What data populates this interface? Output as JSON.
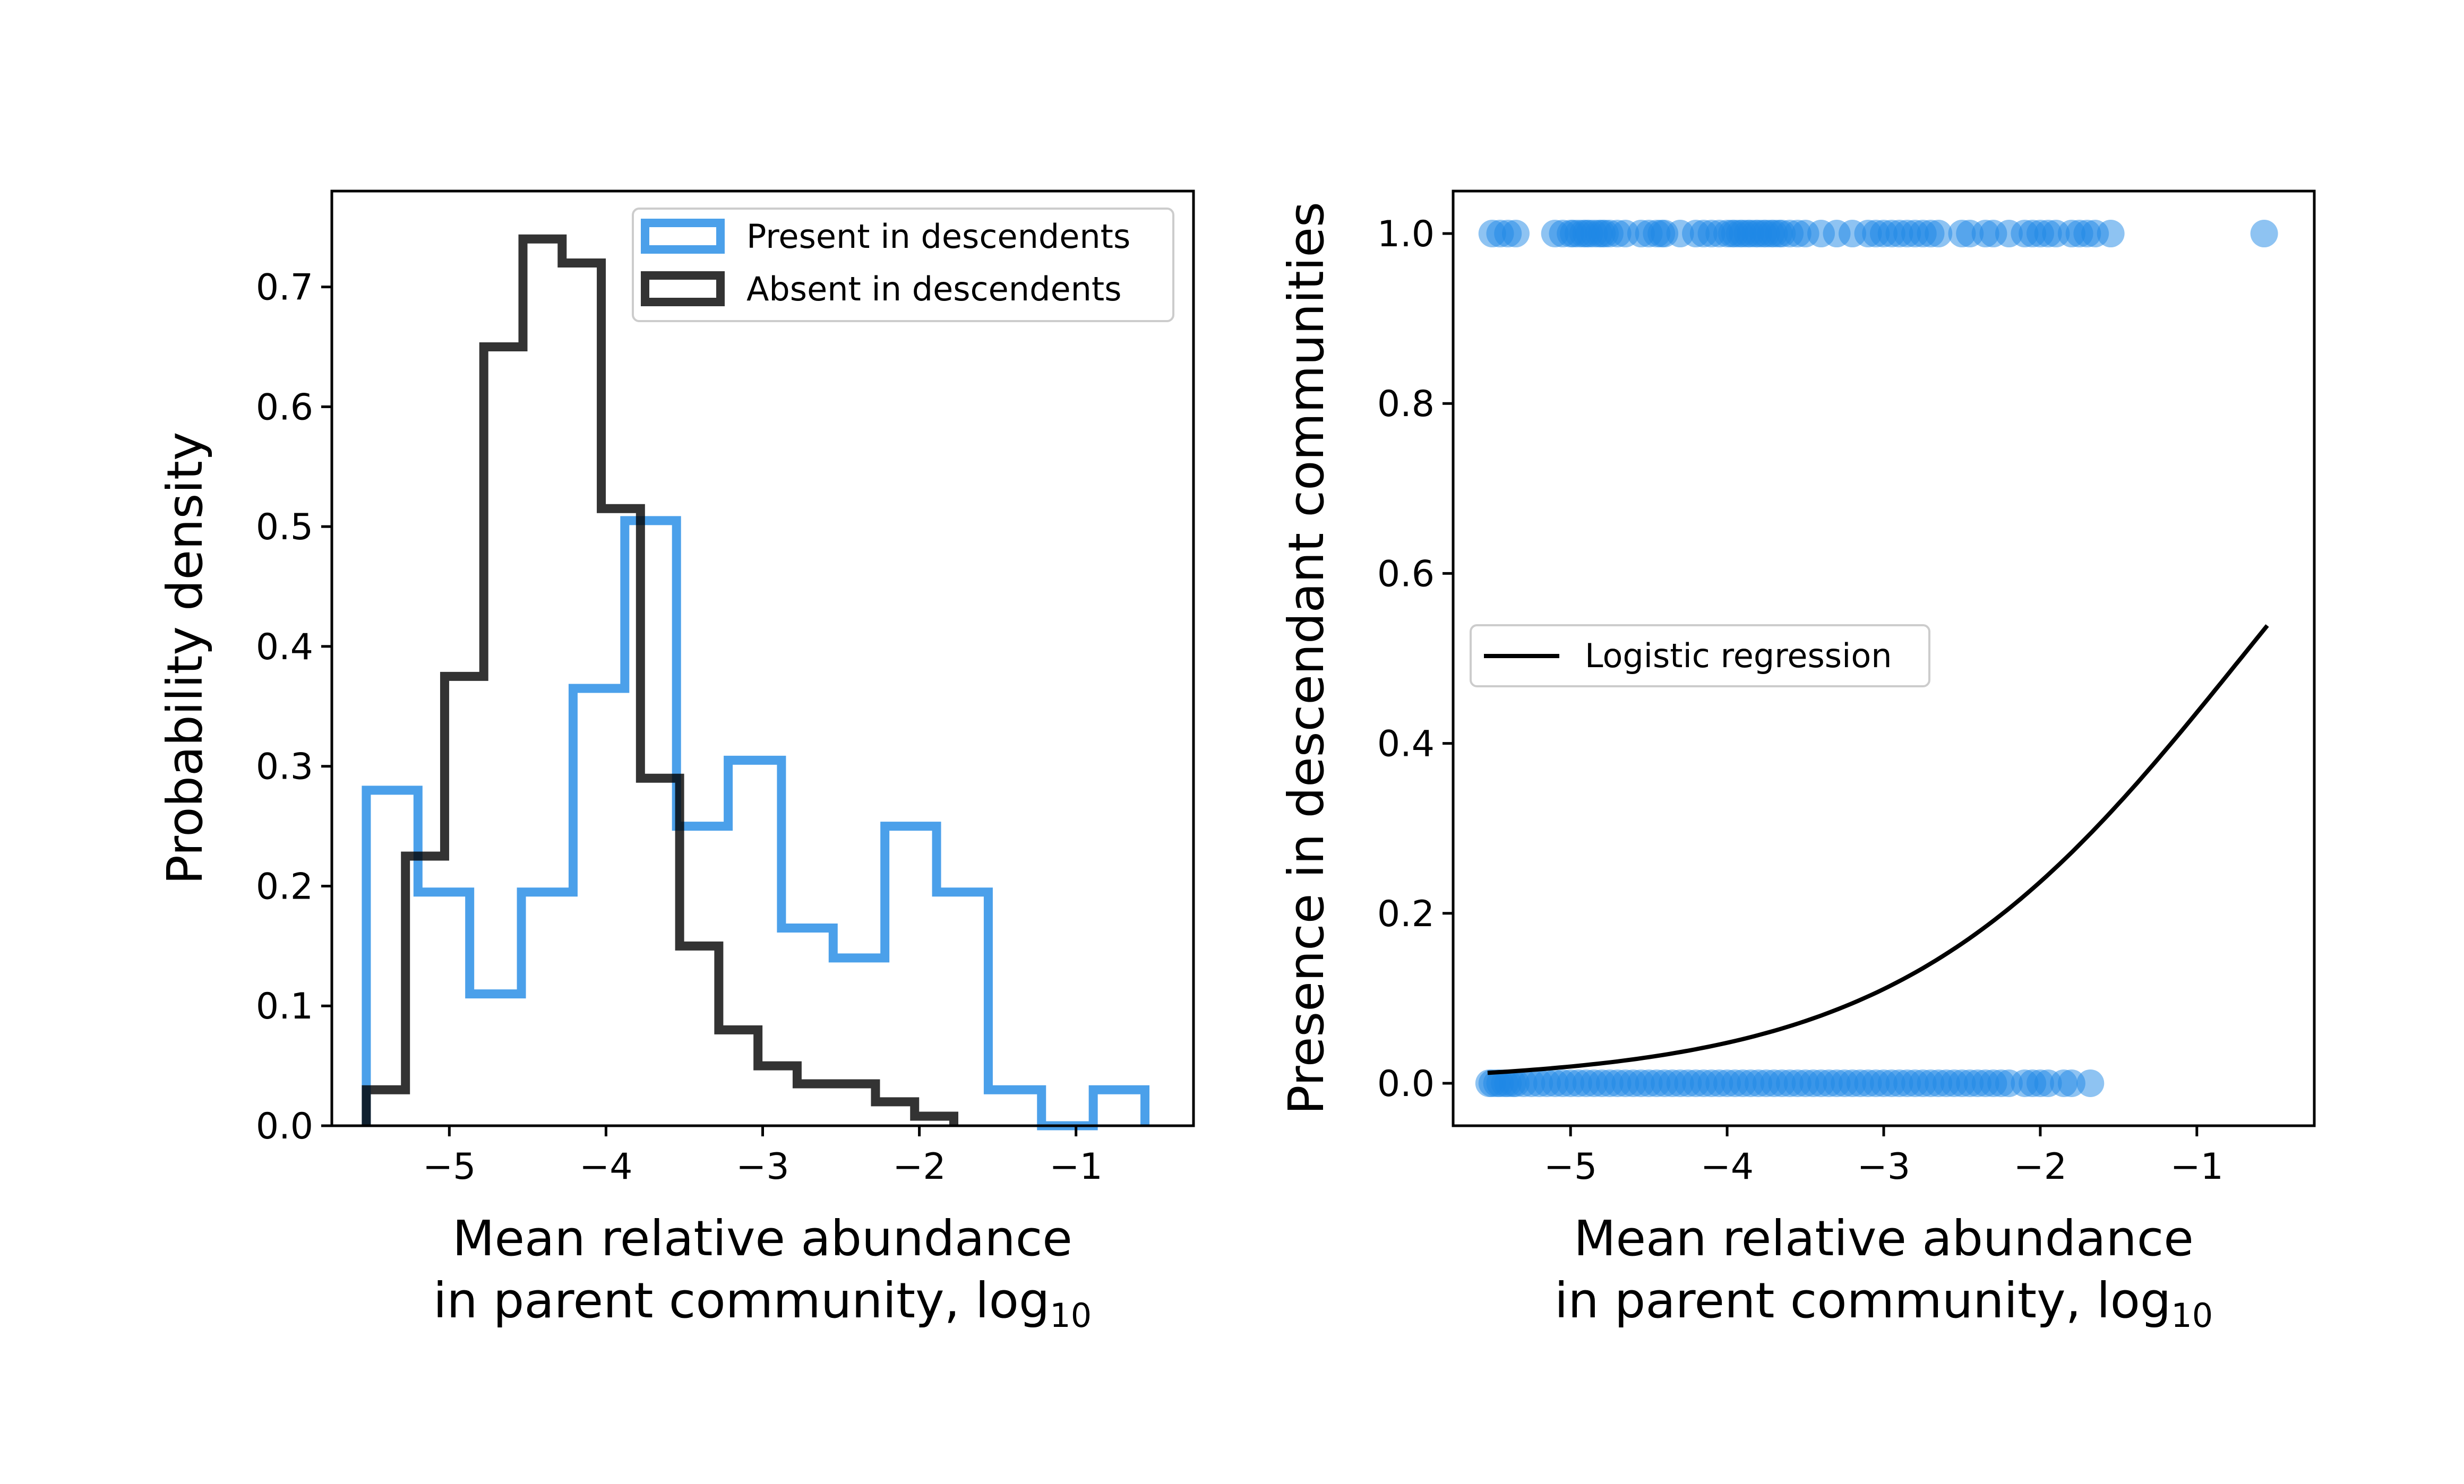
{
  "chart_data": [
    {
      "type": "histogram",
      "xlabel": "Mean relative abundance",
      "xlabel_line2_prefix": "in parent community, log",
      "xlabel_line2_subscript": "10",
      "ylabel": "Probability density",
      "xlim": [
        -5.75,
        -0.25
      ],
      "ylim": [
        0,
        0.78
      ],
      "xticks": [
        -5,
        -4,
        -3,
        -2,
        -1
      ],
      "xtick_labels": [
        "−5",
        "−4",
        "−3",
        "−2",
        "−1"
      ],
      "yticks": [
        0.0,
        0.1,
        0.2,
        0.3,
        0.4,
        0.5,
        0.6,
        0.7
      ],
      "ytick_labels": [
        "0.0",
        "0.1",
        "0.2",
        "0.3",
        "0.4",
        "0.5",
        "0.6",
        "0.7"
      ],
      "legend_position": "top-right",
      "series": [
        {
          "name": "Present in descendents",
          "color": "#1e88e5",
          "opacity": 0.8,
          "bin_edges": [
            -5.53,
            -5.2,
            -4.87,
            -4.54,
            -4.21,
            -3.88,
            -3.55,
            -3.22,
            -2.88,
            -2.55,
            -2.22,
            -1.89,
            -1.56,
            -1.22,
            -0.89,
            -0.56
          ],
          "values": [
            0.28,
            0.195,
            0.11,
            0.195,
            0.365,
            0.505,
            0.25,
            0.305,
            0.165,
            0.14,
            0.25,
            0.195,
            0.03,
            0.0,
            0.03
          ]
        },
        {
          "name": "Absent in descendents",
          "color": "#000000",
          "opacity": 0.8,
          "bin_edges": [
            -5.53,
            -5.28,
            -5.03,
            -4.78,
            -4.53,
            -4.28,
            -4.03,
            -3.78,
            -3.53,
            -3.28,
            -3.03,
            -2.78,
            -2.53,
            -2.28,
            -2.03,
            -1.78
          ],
          "values": [
            0.03,
            0.225,
            0.375,
            0.65,
            0.74,
            0.72,
            0.515,
            0.29,
            0.15,
            0.08,
            0.05,
            0.035,
            0.035,
            0.02,
            0.008
          ]
        }
      ]
    },
    {
      "type": "scatter",
      "xlabel": "Mean relative abundance",
      "xlabel_line2_prefix": "in parent community, log",
      "xlabel_line2_subscript": "10",
      "ylabel": "Presence in descendant communities",
      "xlim": [
        -5.75,
        -0.25
      ],
      "ylim": [
        -0.05,
        1.05
      ],
      "xticks": [
        -5,
        -4,
        -3,
        -2,
        -1
      ],
      "xtick_labels": [
        "−5",
        "−4",
        "−3",
        "−2",
        "−1"
      ],
      "yticks": [
        0.0,
        0.2,
        0.4,
        0.6,
        0.8,
        1.0
      ],
      "ytick_labels": [
        "0.0",
        "0.2",
        "0.4",
        "0.6",
        "0.8",
        "1.0"
      ],
      "legend_position": "center-left",
      "points_color": "#1e88e5",
      "points_opacity": 0.5,
      "present_x": [
        -5.5,
        -5.45,
        -5.4,
        -5.35,
        -5.1,
        -5.05,
        -5.0,
        -4.98,
        -4.95,
        -4.92,
        -4.9,
        -4.88,
        -4.85,
        -4.82,
        -4.8,
        -4.78,
        -4.75,
        -4.7,
        -4.65,
        -4.55,
        -4.5,
        -4.45,
        -4.42,
        -4.4,
        -4.3,
        -4.2,
        -4.15,
        -4.1,
        -4.05,
        -4.0,
        -3.97,
        -3.95,
        -3.92,
        -3.9,
        -3.87,
        -3.85,
        -3.82,
        -3.8,
        -3.77,
        -3.75,
        -3.72,
        -3.7,
        -3.67,
        -3.65,
        -3.6,
        -3.55,
        -3.5,
        -3.4,
        -3.3,
        -3.2,
        -3.1,
        -3.05,
        -3.0,
        -2.95,
        -2.9,
        -2.85,
        -2.8,
        -2.75,
        -2.7,
        -2.65,
        -2.5,
        -2.45,
        -2.35,
        -2.3,
        -2.2,
        -2.1,
        -2.05,
        -2.0,
        -1.95,
        -1.9,
        -1.8,
        -1.75,
        -1.7,
        -1.65,
        -1.55,
        -0.57
      ],
      "absent_x": [
        -5.52,
        -5.5,
        -5.47,
        -5.45,
        -5.42,
        -5.4,
        -5.37,
        -5.35,
        -5.3,
        -5.25,
        -5.2,
        -5.15,
        -5.1,
        -5.05,
        -5.0,
        -4.95,
        -4.9,
        -4.85,
        -4.8,
        -4.75,
        -4.7,
        -4.65,
        -4.6,
        -4.55,
        -4.5,
        -4.45,
        -4.4,
        -4.35,
        -4.3,
        -4.25,
        -4.2,
        -4.15,
        -4.1,
        -4.05,
        -4.0,
        -3.95,
        -3.9,
        -3.85,
        -3.8,
        -3.75,
        -3.7,
        -3.65,
        -3.6,
        -3.55,
        -3.5,
        -3.45,
        -3.4,
        -3.35,
        -3.3,
        -3.25,
        -3.2,
        -3.15,
        -3.1,
        -3.05,
        -3.0,
        -2.95,
        -2.9,
        -2.85,
        -2.8,
        -2.75,
        -2.7,
        -2.65,
        -2.6,
        -2.55,
        -2.5,
        -2.45,
        -2.4,
        -2.35,
        -2.3,
        -2.25,
        -2.2,
        -2.1,
        -2.05,
        -2.0,
        -1.95,
        -1.85,
        -1.8,
        -1.68
      ],
      "regression": {
        "name": "Logistic regression",
        "color": "#000000",
        "x_range": [
          -5.53,
          -0.55
        ],
        "intercept": 0.657,
        "slope": 0.913
      }
    }
  ]
}
